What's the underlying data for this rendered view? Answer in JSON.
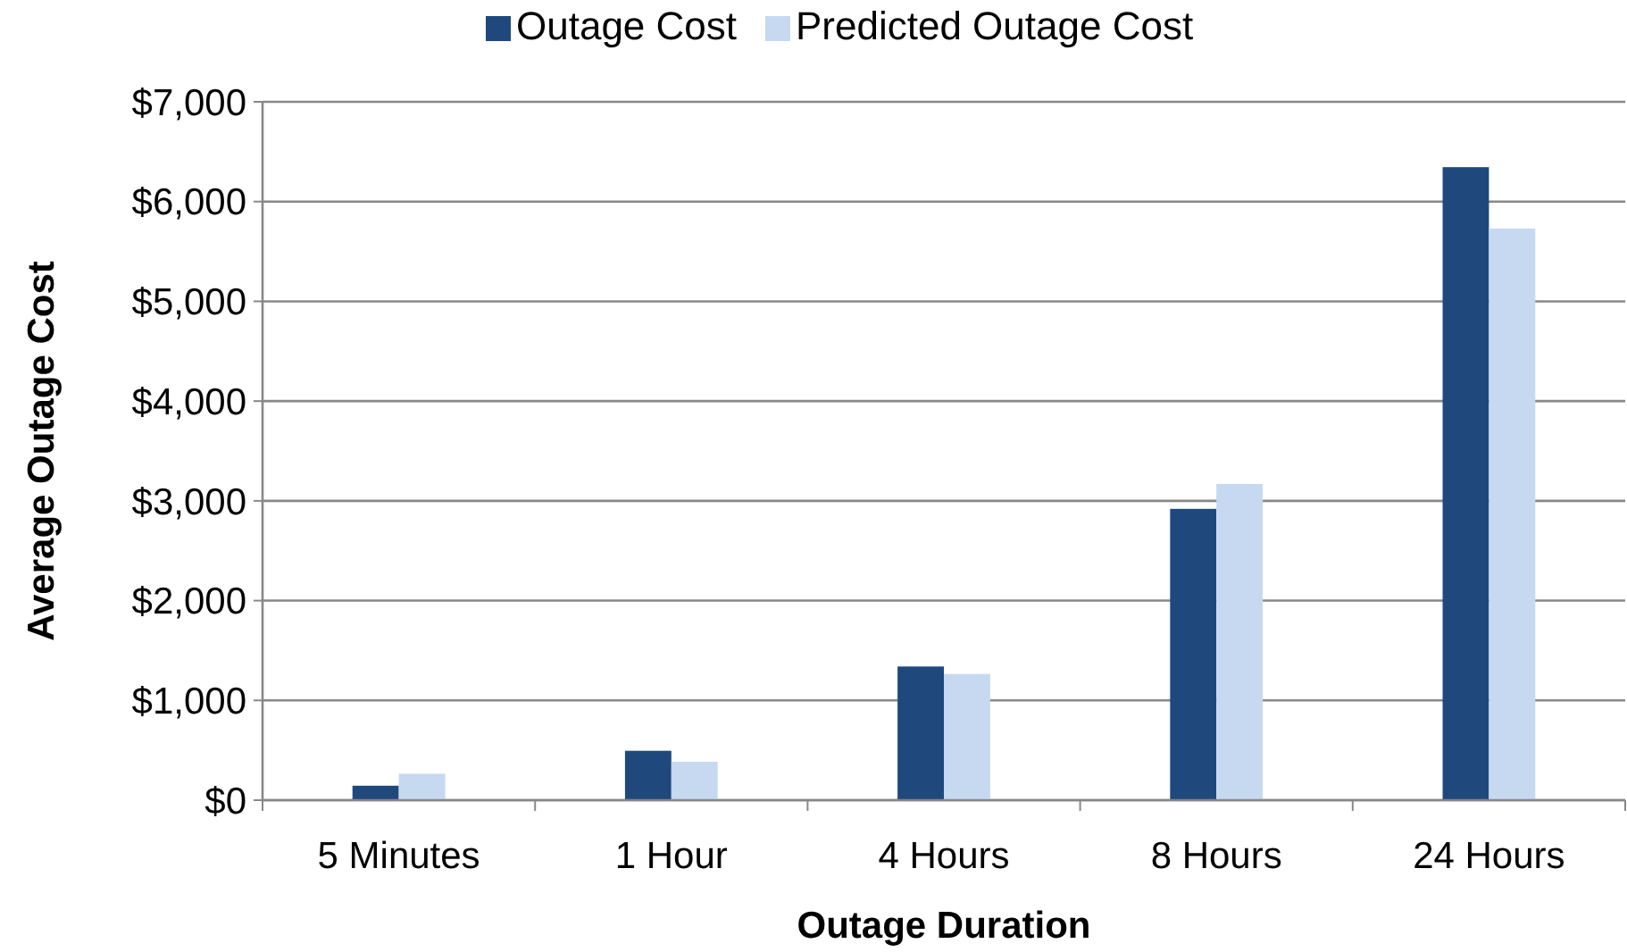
{
  "chart_data": {
    "type": "bar",
    "xlabel": "Outage Duration",
    "ylabel": "Average Outage Cost",
    "categories": [
      "5 Minutes",
      "1 Hour",
      "4 Hours",
      "8 Hours",
      "24 Hours"
    ],
    "series": [
      {
        "name": "Outage Cost",
        "color": "#1f497d",
        "values": [
          145,
          495,
          1340,
          2920,
          6345
        ]
      },
      {
        "name": "Predicted Outage Cost",
        "color": "#c6d9f1",
        "values": [
          265,
          385,
          1265,
          3170,
          5730
        ]
      }
    ],
    "ylim": [
      0,
      7000
    ],
    "yticks": [
      {
        "value": 0,
        "label": "$0"
      },
      {
        "value": 1000,
        "label": "$1,000"
      },
      {
        "value": 2000,
        "label": "$2,000"
      },
      {
        "value": 3000,
        "label": "$3,000"
      },
      {
        "value": 4000,
        "label": "$4,000"
      },
      {
        "value": 5000,
        "label": "$5,000"
      },
      {
        "value": 6000,
        "label": "$6,000"
      },
      {
        "value": 7000,
        "label": "$7,000"
      }
    ],
    "grid": "y",
    "legend": "top"
  }
}
